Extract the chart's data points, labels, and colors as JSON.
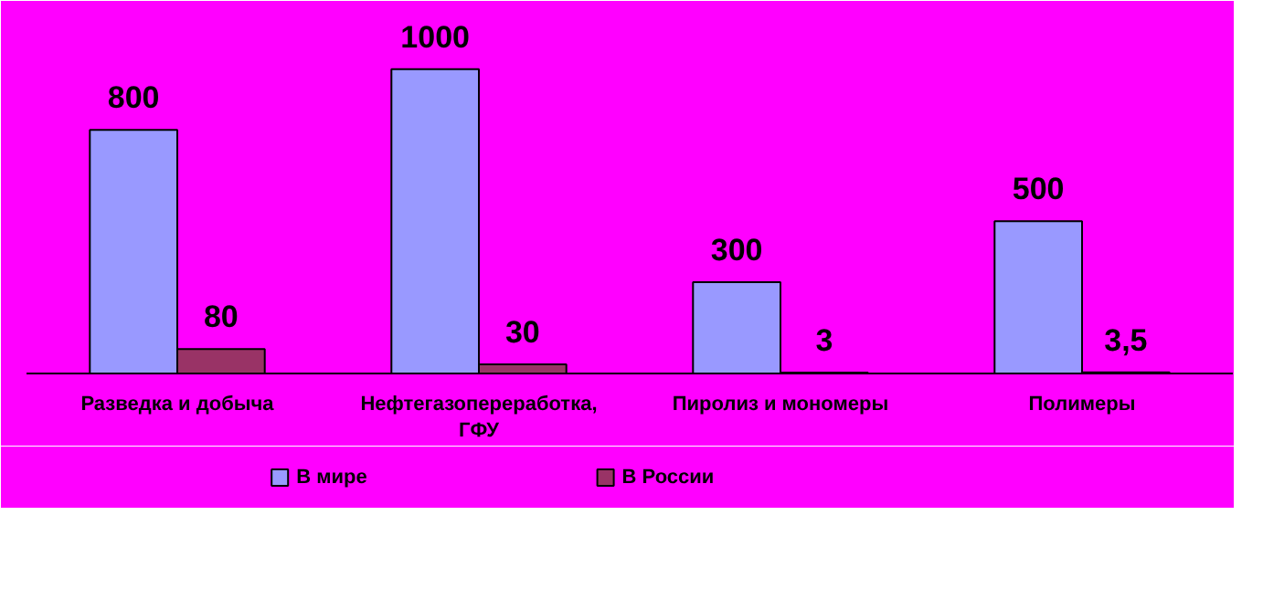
{
  "chart_data": {
    "type": "bar",
    "categories": [
      "Разведка и добыча",
      "Нефтегазопереработка,\nГФУ",
      "Пиролиз и мономеры",
      "Полимеры"
    ],
    "series": [
      {
        "name": "В мире",
        "color": "#9999ff",
        "values": [
          800,
          1000,
          300,
          500
        ],
        "value_labels": [
          "800",
          "1000",
          "300",
          "500"
        ]
      },
      {
        "name": "В России",
        "color": "#993366",
        "values": [
          80,
          30,
          3,
          3.5
        ],
        "value_labels": [
          "80",
          "30",
          "3",
          "3,5"
        ]
      }
    ],
    "ylim": [
      0,
      1200
    ],
    "legend": "bottom",
    "grid": false
  }
}
